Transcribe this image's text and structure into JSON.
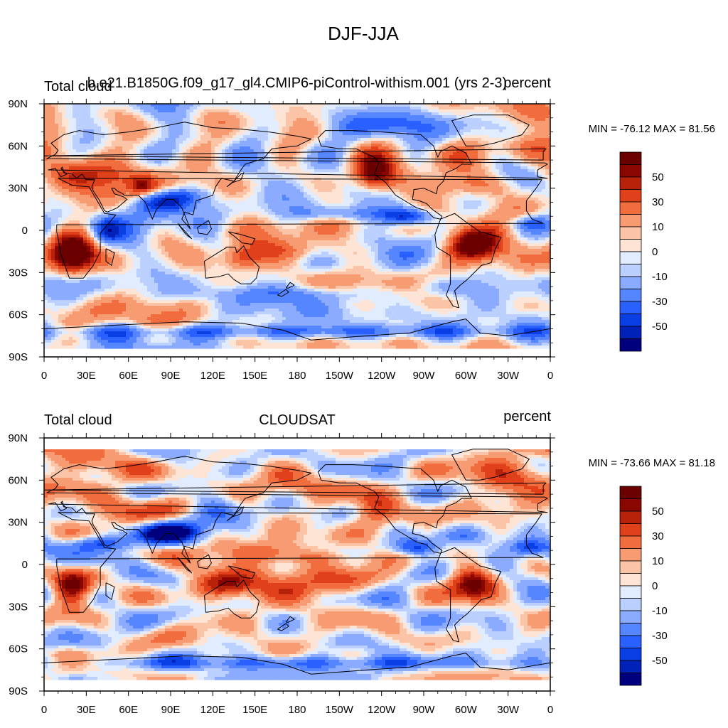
{
  "figure": {
    "title": "DJF-JJA"
  },
  "colors": {
    "levels": [
      -60,
      -50,
      -40,
      -30,
      -20,
      -10,
      -5,
      0,
      5,
      10,
      20,
      30,
      40,
      50,
      60
    ],
    "fills": [
      "#00007f",
      "#0022b8",
      "#0a3fe6",
      "#2a60ff",
      "#5585ff",
      "#8aabff",
      "#bcd0ff",
      "#e2ecff",
      "#fde4d4",
      "#fbc4a6",
      "#f79b72",
      "#f26d3e",
      "#e0411a",
      "#b8220a",
      "#8a0600",
      "#6a0000"
    ]
  },
  "colorbar_labels": [
    "50",
    "30",
    "10",
    "0",
    "-10",
    "-30",
    "-50"
  ],
  "chart_data": [
    {
      "type": "heatmap",
      "title_left": "Total cloud",
      "title_center": "b.e21.B1850G.f09_g17_gl4.CMIP6-piControl-withism.001 (yrs 2-3)",
      "title_right": "percent",
      "stats": "MIN = -76.12 MAX =  81.56",
      "x_ticks": [
        "0",
        "30E",
        "60E",
        "90E",
        "120E",
        "150E",
        "180",
        "150W",
        "120W",
        "90W",
        "60W",
        "30W",
        "0"
      ],
      "y_ticks": [
        "90N",
        "60N",
        "30N",
        "0",
        "30S",
        "60S",
        "90S"
      ],
      "xlim": [
        0,
        360
      ],
      "ylim": [
        -90,
        90
      ],
      "valid_lat": [
        -84,
        90
      ],
      "min": -76.12,
      "max": 81.56,
      "seed": 11,
      "features": [
        {
          "lon": 20,
          "lat": -17,
          "rx": 14,
          "ry": 14,
          "v": 85
        },
        {
          "lon": 305,
          "lat": -10,
          "rx": 18,
          "ry": 12,
          "v": 85
        },
        {
          "lon": 30,
          "lat": 40,
          "rx": 30,
          "ry": 12,
          "v": 48
        },
        {
          "lon": 70,
          "lat": 32,
          "rx": 8,
          "ry": 6,
          "v": 32
        },
        {
          "lon": 235,
          "lat": 40,
          "rx": 13,
          "ry": 12,
          "v": 48
        },
        {
          "lon": 300,
          "lat": 32,
          "rx": 35,
          "ry": 9,
          "v": 35
        },
        {
          "lon": 340,
          "lat": 60,
          "rx": 22,
          "ry": 10,
          "v": 25
        },
        {
          "lon": 140,
          "lat": -20,
          "rx": 14,
          "ry": 8,
          "v": 40
        },
        {
          "lon": 190,
          "lat": -15,
          "rx": 40,
          "ry": 8,
          "v": 22
        },
        {
          "lon": 120,
          "lat": 50,
          "rx": 25,
          "ry": 10,
          "v": 15
        },
        {
          "lon": 85,
          "lat": 20,
          "rx": 20,
          "ry": 8,
          "v": -55
        },
        {
          "lon": 100,
          "lat": 25,
          "rx": 20,
          "ry": 6,
          "v": -25
        },
        {
          "lon": 260,
          "lat": 10,
          "rx": 18,
          "ry": 6,
          "v": -60
        },
        {
          "lon": 210,
          "lat": 12,
          "rx": 30,
          "ry": 5,
          "v": -30
        },
        {
          "lon": 345,
          "lat": 5,
          "rx": 15,
          "ry": 6,
          "v": -30
        },
        {
          "lon": 45,
          "lat": 0,
          "rx": 10,
          "ry": 10,
          "v": -30
        },
        {
          "lon": 190,
          "lat": -45,
          "rx": 80,
          "ry": 6,
          "v": -20
        },
        {
          "lon": 180,
          "lat": -72,
          "rx": 180,
          "ry": 5,
          "v": -35
        },
        {
          "lon": 280,
          "lat": -40,
          "rx": 20,
          "ry": 8,
          "v": -25
        },
        {
          "lon": 130,
          "lat": 70,
          "rx": 30,
          "ry": 8,
          "v": -15
        },
        {
          "lon": 240,
          "lat": 75,
          "rx": 40,
          "ry": 8,
          "v": -20
        }
      ]
    },
    {
      "type": "heatmap",
      "title_left": "Total cloud",
      "title_center": "CLOUDSAT",
      "title_right": "percent",
      "stats": "MIN = -73.66 MAX =  81.18",
      "x_ticks": [
        "0",
        "30E",
        "60E",
        "90E",
        "120E",
        "150E",
        "180",
        "150W",
        "120W",
        "90W",
        "60W",
        "30W",
        "0"
      ],
      "y_ticks": [
        "90N",
        "60N",
        "30N",
        "0",
        "30S",
        "60S",
        "90S"
      ],
      "xlim": [
        0,
        360
      ],
      "ylim": [
        -90,
        90
      ],
      "valid_lat": [
        -82,
        82
      ],
      "min": -73.66,
      "max": 81.18,
      "seed": 29,
      "features": [
        {
          "lon": 20,
          "lat": -17,
          "rx": 14,
          "ry": 13,
          "v": 70
        },
        {
          "lon": 305,
          "lat": -12,
          "rx": 16,
          "ry": 12,
          "v": 70
        },
        {
          "lon": 130,
          "lat": -15,
          "rx": 25,
          "ry": 10,
          "v": 45
        },
        {
          "lon": 60,
          "lat": 40,
          "rx": 35,
          "ry": 10,
          "v": 32
        },
        {
          "lon": 235,
          "lat": 38,
          "rx": 15,
          "ry": 12,
          "v": 38
        },
        {
          "lon": 330,
          "lat": 62,
          "rx": 30,
          "ry": 12,
          "v": 35
        },
        {
          "lon": 180,
          "lat": 55,
          "rx": 40,
          "ry": 12,
          "v": 25
        },
        {
          "lon": 190,
          "lat": -15,
          "rx": 40,
          "ry": 10,
          "v": 25
        },
        {
          "lon": 30,
          "lat": 70,
          "rx": 30,
          "ry": 8,
          "v": 20
        },
        {
          "lon": 85,
          "lat": 22,
          "rx": 25,
          "ry": 8,
          "v": -65
        },
        {
          "lon": 40,
          "lat": 15,
          "rx": 20,
          "ry": 5,
          "v": -35
        },
        {
          "lon": 265,
          "lat": 12,
          "rx": 15,
          "ry": 6,
          "v": -45
        },
        {
          "lon": 345,
          "lat": 12,
          "rx": 15,
          "ry": 5,
          "v": -30
        },
        {
          "lon": 120,
          "lat": 40,
          "rx": 20,
          "ry": 12,
          "v": -25
        },
        {
          "lon": 300,
          "lat": 20,
          "rx": 20,
          "ry": 6,
          "v": -20
        },
        {
          "lon": 190,
          "lat": -70,
          "rx": 180,
          "ry": 5,
          "v": -30
        },
        {
          "lon": 250,
          "lat": -25,
          "rx": 25,
          "ry": 8,
          "v": -20
        },
        {
          "lon": 200,
          "lat": 5,
          "rx": 60,
          "ry": 4,
          "v": 12
        },
        {
          "lon": 150,
          "lat": 10,
          "rx": 25,
          "ry": 6,
          "v": 18
        }
      ]
    }
  ]
}
